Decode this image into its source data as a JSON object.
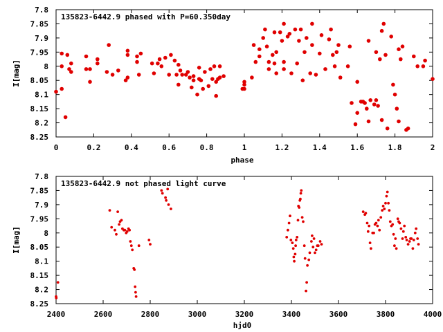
{
  "chart_data": [
    {
      "type": "scatter",
      "title": "135823-6442.9 phased with P=60.350day",
      "xlabel": "phase",
      "ylabel": "I[mag]",
      "xlim": [
        0,
        2
      ],
      "ylim": [
        8.25,
        7.8
      ],
      "y_inverted": true,
      "grid": false,
      "legend": "none",
      "marker_color": "#e00000",
      "x_ticks": [
        "0",
        "0.2",
        "0.4",
        "0.6",
        "0.8",
        "1",
        "1.2",
        "1.4",
        "1.6",
        "1.8",
        "2"
      ],
      "y_ticks": [
        "7.8",
        "7.85",
        "7.9",
        "7.95",
        "8",
        "8.05",
        "8.1",
        "8.15",
        "8.2",
        "8.25"
      ],
      "points": [
        [
          0.0,
          8.09
        ],
        [
          0.03,
          8.08
        ],
        [
          0.03,
          7.955
        ],
        [
          0.03,
          8.0
        ],
        [
          0.05,
          8.18
        ],
        [
          0.06,
          7.96
        ],
        [
          0.07,
          8.01
        ],
        [
          0.08,
          7.99
        ],
        [
          0.08,
          8.02
        ],
        [
          0.16,
          7.965
        ],
        [
          0.16,
          8.01
        ],
        [
          0.18,
          8.01
        ],
        [
          0.18,
          8.055
        ],
        [
          0.22,
          7.975
        ],
        [
          0.22,
          7.99
        ],
        [
          0.27,
          8.02
        ],
        [
          0.28,
          7.925
        ],
        [
          0.3,
          8.03
        ],
        [
          0.33,
          8.015
        ],
        [
          0.37,
          8.05
        ],
        [
          0.38,
          7.945
        ],
        [
          0.38,
          7.96
        ],
        [
          0.38,
          8.04
        ],
        [
          0.43,
          7.965
        ],
        [
          0.43,
          7.985
        ],
        [
          0.44,
          8.03
        ],
        [
          0.45,
          7.955
        ],
        [
          0.51,
          7.99
        ],
        [
          0.52,
          8.025
        ],
        [
          0.54,
          7.99
        ],
        [
          0.55,
          7.975
        ],
        [
          0.56,
          8.0
        ],
        [
          0.58,
          7.97
        ],
        [
          0.6,
          8.03
        ],
        [
          0.61,
          7.96
        ],
        [
          0.63,
          7.98
        ],
        [
          0.64,
          8.03
        ],
        [
          0.65,
          8.065
        ],
        [
          0.65,
          7.995
        ],
        [
          0.66,
          8.015
        ],
        [
          0.67,
          8.03
        ],
        [
          0.69,
          8.03
        ],
        [
          0.7,
          8.02
        ],
        [
          0.71,
          8.04
        ],
        [
          0.72,
          8.075
        ],
        [
          0.73,
          8.035
        ],
        [
          0.73,
          8.05
        ],
        [
          0.75,
          8.1
        ],
        [
          0.76,
          8.005
        ],
        [
          0.76,
          8.045
        ],
        [
          0.77,
          8.05
        ],
        [
          0.78,
          8.08
        ],
        [
          0.79,
          8.02
        ],
        [
          0.81,
          8.07
        ],
        [
          0.82,
          8.01
        ],
        [
          0.83,
          8.045
        ],
        [
          0.84,
          8.0
        ],
        [
          0.85,
          8.055
        ],
        [
          0.85,
          8.105
        ],
        [
          0.86,
          8.045
        ],
        [
          0.87,
          8.0
        ],
        [
          0.87,
          8.04
        ],
        [
          0.89,
          8.035
        ],
        [
          0.99,
          8.08
        ],
        [
          1.0,
          8.08
        ],
        [
          1.0,
          8.065
        ],
        [
          1.0,
          8.055
        ],
        [
          1.04,
          8.04
        ],
        [
          1.05,
          7.925
        ],
        [
          1.06,
          7.985
        ],
        [
          1.08,
          7.965
        ],
        [
          1.08,
          7.94
        ],
        [
          1.1,
          7.9
        ],
        [
          1.11,
          7.87
        ],
        [
          1.12,
          7.93
        ],
        [
          1.13,
          8.01
        ],
        [
          1.13,
          7.985
        ],
        [
          1.15,
          7.96
        ],
        [
          1.16,
          7.99
        ],
        [
          1.16,
          7.88
        ],
        [
          1.17,
          8.025
        ],
        [
          1.17,
          7.95
        ],
        [
          1.19,
          7.88
        ],
        [
          1.2,
          7.91
        ],
        [
          1.21,
          7.85
        ],
        [
          1.21,
          8.01
        ],
        [
          1.21,
          7.985
        ],
        [
          1.23,
          7.895
        ],
        [
          1.24,
          7.885
        ],
        [
          1.25,
          8.025
        ],
        [
          1.27,
          7.87
        ],
        [
          1.28,
          7.99
        ],
        [
          1.29,
          7.91
        ],
        [
          1.3,
          7.87
        ],
        [
          1.31,
          8.05
        ],
        [
          1.32,
          7.95
        ],
        [
          1.33,
          7.9
        ],
        [
          1.35,
          8.025
        ],
        [
          1.36,
          7.85
        ],
        [
          1.36,
          7.925
        ],
        [
          1.38,
          8.03
        ],
        [
          1.4,
          7.955
        ],
        [
          1.41,
          7.89
        ],
        [
          1.43,
          8.01
        ],
        [
          1.45,
          7.905
        ],
        [
          1.46,
          7.87
        ],
        [
          1.47,
          7.96
        ],
        [
          1.48,
          8.0
        ],
        [
          1.49,
          7.95
        ],
        [
          1.5,
          7.925
        ],
        [
          1.51,
          8.04
        ],
        [
          1.55,
          8.0
        ],
        [
          1.56,
          7.93
        ],
        [
          1.57,
          8.13
        ],
        [
          1.59,
          8.205
        ],
        [
          1.6,
          8.055
        ],
        [
          1.6,
          8.165
        ],
        [
          1.62,
          8.125
        ],
        [
          1.63,
          8.125
        ],
        [
          1.64,
          8.13
        ],
        [
          1.65,
          8.15
        ],
        [
          1.66,
          8.195
        ],
        [
          1.66,
          7.91
        ],
        [
          1.67,
          8.12
        ],
        [
          1.69,
          8.135
        ],
        [
          1.7,
          7.95
        ],
        [
          1.7,
          8.12
        ],
        [
          1.71,
          8.14
        ],
        [
          1.72,
          7.975
        ],
        [
          1.73,
          8.19
        ],
        [
          1.73,
          7.875
        ],
        [
          1.74,
          7.85
        ],
        [
          1.75,
          7.96
        ],
        [
          1.76,
          8.22
        ],
        [
          1.78,
          7.895
        ],
        [
          1.79,
          8.065
        ],
        [
          1.8,
          8.1
        ],
        [
          1.81,
          8.15
        ],
        [
          1.82,
          7.94
        ],
        [
          1.82,
          8.195
        ],
        [
          1.83,
          7.975
        ],
        [
          1.84,
          7.93
        ],
        [
          1.86,
          8.225
        ],
        [
          1.87,
          8.22
        ],
        [
          1.9,
          7.965
        ],
        [
          1.92,
          8.0
        ],
        [
          1.95,
          8.0
        ],
        [
          1.96,
          7.98
        ],
        [
          2.0,
          8.045
        ]
      ]
    },
    {
      "type": "scatter",
      "title": "135823-6442.9 not phased light curve",
      "xlabel": "hjd0",
      "ylabel": "I[mag]",
      "xlim": [
        2400,
        4000
      ],
      "ylim": [
        8.25,
        7.8
      ],
      "y_inverted": true,
      "grid": false,
      "legend": "none",
      "marker_color": "#e00000",
      "x_ticks": [
        "2400",
        "2600",
        "2800",
        "3000",
        "3200",
        "3400",
        "3600",
        "3800",
        "4000"
      ],
      "y_ticks": [
        "7.8",
        "7.85",
        "7.9",
        "7.95",
        "8",
        "8.05",
        "8.1",
        "8.15",
        "8.2",
        "8.25"
      ],
      "points": [
        [
          2400,
          8.225
        ],
        [
          2401,
          8.23
        ],
        [
          2408,
          8.175
        ],
        [
          2628,
          7.92
        ],
        [
          2636,
          7.98
        ],
        [
          2650,
          7.99
        ],
        [
          2656,
          8.005
        ],
        [
          2662,
          7.925
        ],
        [
          2668,
          7.97
        ],
        [
          2672,
          7.96
        ],
        [
          2678,
          7.955
        ],
        [
          2682,
          7.985
        ],
        [
          2688,
          7.99
        ],
        [
          2692,
          7.99
        ],
        [
          2698,
          8.0
        ],
        [
          2702,
          7.995
        ],
        [
          2708,
          7.985
        ],
        [
          2712,
          7.99
        ],
        [
          2716,
          8.03
        ],
        [
          2720,
          8.045
        ],
        [
          2724,
          8.06
        ],
        [
          2730,
          8.125
        ],
        [
          2733,
          8.13
        ],
        [
          2736,
          8.19
        ],
        [
          2738,
          8.21
        ],
        [
          2740,
          8.225
        ],
        [
          2752,
          8.045
        ],
        [
          2795,
          8.025
        ],
        [
          2800,
          8.04
        ],
        [
          2848,
          7.85
        ],
        [
          2852,
          7.86
        ],
        [
          2865,
          7.875
        ],
        [
          2868,
          7.885
        ],
        [
          2874,
          7.845
        ],
        [
          2878,
          7.9
        ],
        [
          2888,
          7.915
        ],
        [
          3380,
          8.015
        ],
        [
          3385,
          7.99
        ],
        [
          3390,
          7.965
        ],
        [
          3394,
          7.94
        ],
        [
          3398,
          8.025
        ],
        [
          3404,
          8.035
        ],
        [
          3408,
          8.055
        ],
        [
          3410,
          8.085
        ],
        [
          3412,
          8.1
        ],
        [
          3416,
          8.075
        ],
        [
          3418,
          8.045
        ],
        [
          3420,
          8.025
        ],
        [
          3424,
          8.015
        ],
        [
          3428,
          7.955
        ],
        [
          3430,
          7.905
        ],
        [
          3433,
          7.91
        ],
        [
          3436,
          7.885
        ],
        [
          3438,
          7.88
        ],
        [
          3440,
          7.86
        ],
        [
          3442,
          7.85
        ],
        [
          3446,
          7.945
        ],
        [
          3450,
          7.96
        ],
        [
          3455,
          8.045
        ],
        [
          3458,
          8.09
        ],
        [
          3462,
          8.205
        ],
        [
          3465,
          8.175
        ],
        [
          3468,
          8.115
        ],
        [
          3474,
          8.095
        ],
        [
          3478,
          8.07
        ],
        [
          3485,
          8.03
        ],
        [
          3488,
          8.01
        ],
        [
          3492,
          8.05
        ],
        [
          3496,
          8.02
        ],
        [
          3500,
          8.07
        ],
        [
          3505,
          8.06
        ],
        [
          3510,
          8.045
        ],
        [
          3514,
          8.045
        ],
        [
          3522,
          8.03
        ],
        [
          3528,
          8.04
        ],
        [
          3705,
          7.925
        ],
        [
          3712,
          7.935
        ],
        [
          3716,
          7.93
        ],
        [
          3722,
          7.965
        ],
        [
          3726,
          7.995
        ],
        [
          3730,
          7.975
        ],
        [
          3734,
          8.035
        ],
        [
          3738,
          8.055
        ],
        [
          3745,
          8.0
        ],
        [
          3750,
          8.0
        ],
        [
          3755,
          7.97
        ],
        [
          3760,
          7.965
        ],
        [
          3766,
          7.975
        ],
        [
          3770,
          7.955
        ],
        [
          3774,
          7.99
        ],
        [
          3780,
          7.945
        ],
        [
          3786,
          7.92
        ],
        [
          3790,
          7.905
        ],
        [
          3795,
          7.915
        ],
        [
          3800,
          7.895
        ],
        [
          3804,
          7.87
        ],
        [
          3808,
          7.855
        ],
        [
          3812,
          7.895
        ],
        [
          3816,
          7.92
        ],
        [
          3820,
          7.96
        ],
        [
          3825,
          7.975
        ],
        [
          3830,
          7.97
        ],
        [
          3834,
          8.005
        ],
        [
          3838,
          8.045
        ],
        [
          3842,
          8.02
        ],
        [
          3846,
          8.055
        ],
        [
          3852,
          7.95
        ],
        [
          3856,
          7.96
        ],
        [
          3860,
          7.965
        ],
        [
          3866,
          7.985
        ],
        [
          3872,
          8.02
        ],
        [
          3876,
          7.995
        ],
        [
          3880,
          7.975
        ],
        [
          3886,
          8.015
        ],
        [
          3890,
          8.025
        ],
        [
          3896,
          8.04
        ],
        [
          3902,
          8.03
        ],
        [
          3906,
          8.02
        ],
        [
          3910,
          8.02
        ],
        [
          3916,
          8.055
        ],
        [
          3920,
          8.025
        ],
        [
          3926,
          8.0
        ],
        [
          3930,
          7.985
        ],
        [
          3936,
          8.02
        ],
        [
          3940,
          8.04
        ]
      ]
    }
  ]
}
